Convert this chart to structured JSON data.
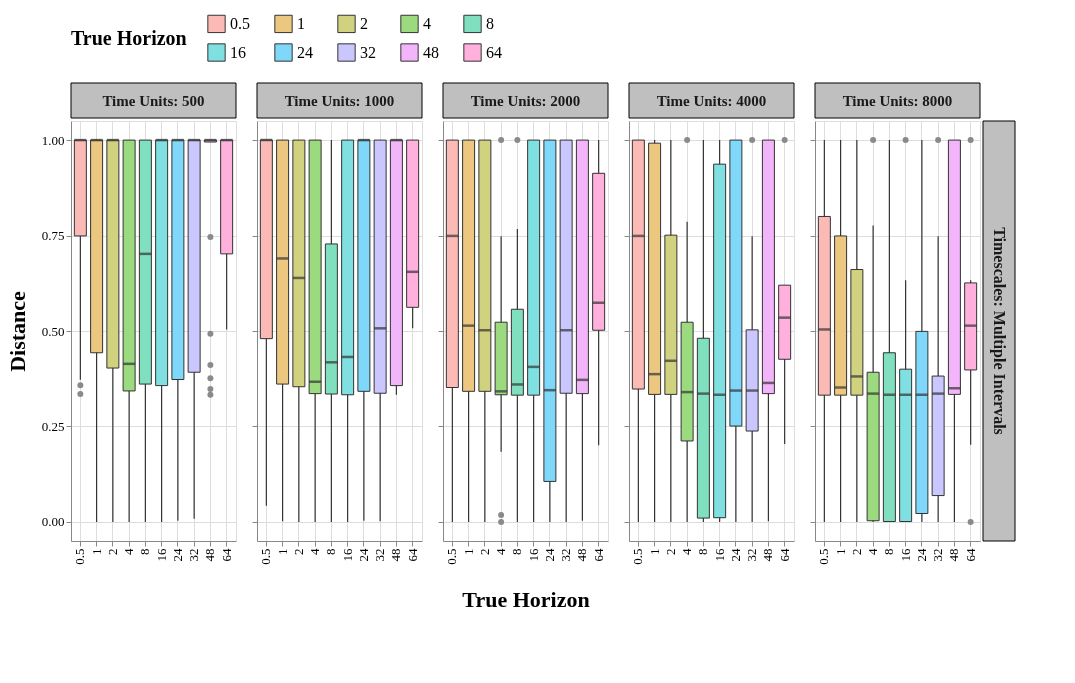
{
  "chart_data": [
    {
      "type": "box",
      "title": "Time Units: 500",
      "ylabel": "Distance",
      "legend_title": "True Horizon",
      "legend": "top",
      "grid": true,
      "ylim": [
        -0.05,
        1.05
      ],
      "yticks": [
        {
          "value": 0,
          "label": "0.00"
        },
        {
          "value": 0.25,
          "label": "0.25"
        },
        {
          "value": 0.5,
          "label": "0.50"
        },
        {
          "value": 0.75,
          "label": "0.75"
        },
        {
          "value": 1,
          "label": "1.00"
        }
      ],
      "categories": [
        "0.5",
        "1",
        "2",
        "4",
        "8",
        "16",
        "24",
        "32",
        "48",
        "64"
      ],
      "series": [
        {
          "name": "0.5",
          "color": "#fbbab6",
          "boxes": [
            {
              "low": 0.372,
              "q1": 0.749,
              "median": 1,
              "q3": 1,
              "high": 1,
              "outliers": [
                0.358,
                0.335
              ]
            },
            null,
            null,
            null,
            null,
            null,
            null,
            null,
            null,
            null
          ]
        },
        {
          "name": "1",
          "color": "#ebc77f",
          "boxes": [
            null,
            {
              "low": 0,
              "q1": 0.443,
              "median": 1,
              "q3": 1,
              "high": 1
            },
            null,
            null,
            null,
            null,
            null,
            null,
            null,
            null
          ]
        },
        {
          "name": "2",
          "color": "#d1d27f",
          "boxes": [
            null,
            null,
            {
              "low": 0,
              "q1": 0.403,
              "median": 1,
              "q3": 1,
              "high": 1
            },
            null,
            null,
            null,
            null,
            null,
            null,
            null
          ]
        },
        {
          "name": "4",
          "color": "#9cda7f",
          "boxes": [
            null,
            null,
            null,
            {
              "low": 0,
              "q1": 0.343,
              "median": 0.414,
              "q3": 1,
              "high": 1
            },
            null,
            null,
            null,
            null,
            null,
            null
          ]
        },
        {
          "name": "8",
          "color": "#7fdfbe",
          "boxes": [
            null,
            null,
            null,
            null,
            {
              "low": 0,
              "q1": 0.361,
              "median": 0.702,
              "q3": 1,
              "high": 1
            },
            null,
            null,
            null,
            null,
            null
          ]
        },
        {
          "name": "16",
          "color": "#7fdfe1",
          "boxes": [
            null,
            null,
            null,
            null,
            null,
            {
              "low": 0,
              "q1": 0.357,
              "median": 1,
              "q3": 1,
              "high": 1
            },
            null,
            null,
            null,
            null
          ]
        },
        {
          "name": "24",
          "color": "#7fd7fa",
          "boxes": [
            null,
            null,
            null,
            null,
            null,
            null,
            {
              "low": 0.003,
              "q1": 0.373,
              "median": 1,
              "q3": 1,
              "high": 1
            },
            null,
            null,
            null
          ]
        },
        {
          "name": "32",
          "color": "#cac7ff",
          "boxes": [
            null,
            null,
            null,
            null,
            null,
            null,
            null,
            {
              "low": 0.008,
              "q1": 0.392,
              "median": 1,
              "q3": 1,
              "high": 1
            },
            null,
            null
          ]
        },
        {
          "name": "48",
          "color": "#f3b5f9",
          "boxes": [
            null,
            null,
            null,
            null,
            null,
            null,
            null,
            null,
            {
              "low": 0.995,
              "q1": 0.995,
              "median": 1,
              "q3": 1,
              "high": 1,
              "outliers": [
                0.746,
                0.493,
                0.411,
                0.376,
                0.348,
                0.333
              ]
            },
            null
          ]
        },
        {
          "name": "64",
          "color": "#ffb0dd",
          "boxes": [
            null,
            null,
            null,
            null,
            null,
            null,
            null,
            null,
            null,
            {
              "low": 0.504,
              "q1": 0.702,
              "median": 1,
              "q3": 1,
              "high": 1
            }
          ]
        }
      ]
    },
    {
      "type": "box",
      "title": "Time Units: 1000",
      "grid": true,
      "tick_labels": "x",
      "ylim": [
        -0.05,
        1.05
      ],
      "yticks": [
        {
          "value": 0,
          "label": null
        },
        {
          "value": 0.25,
          "label": null
        },
        {
          "value": 0.5,
          "label": null
        },
        {
          "value": 0.75,
          "label": null
        },
        {
          "value": 1,
          "label": null
        }
      ],
      "categories": [
        "0.5",
        "1",
        "2",
        "4",
        "8",
        "16",
        "24",
        "32",
        "48",
        "64"
      ],
      "colors": [
        "#fbbab6",
        "#ebc77f",
        "#d1d27f",
        "#9cda7f",
        "#7fdfbe",
        "#7fdfe1",
        "#7fd7fa",
        "#cac7ff",
        "#f3b5f9",
        "#ffb0dd"
      ],
      "boxes": [
        {
          "low": 0.042,
          "q1": 0.48,
          "median": 1,
          "q3": 1,
          "high": 1
        },
        {
          "low": 0.002,
          "q1": 0.361,
          "median": 0.69,
          "q3": 1,
          "high": 1
        },
        {
          "low": 0,
          "q1": 0.354,
          "median": 0.639,
          "q3": 1,
          "high": 1
        },
        {
          "low": 0,
          "q1": 0.336,
          "median": 0.367,
          "q3": 1,
          "high": 1
        },
        {
          "low": 0,
          "q1": 0.335,
          "median": 0.418,
          "q3": 0.728,
          "high": 1
        },
        {
          "low": 0,
          "q1": 0.333,
          "median": 0.432,
          "q3": 1,
          "high": 1
        },
        {
          "low": 0.003,
          "q1": 0.342,
          "median": 1,
          "q3": 1,
          "high": 1
        },
        {
          "low": 0.002,
          "q1": 0.337,
          "median": 0.507,
          "q3": 1,
          "high": 1
        },
        {
          "low": 0.333,
          "q1": 0.357,
          "median": 1,
          "q3": 1,
          "high": 1
        },
        {
          "low": 0.507,
          "q1": 0.562,
          "median": 0.655,
          "q3": 1,
          "high": 1
        }
      ]
    },
    {
      "type": "box",
      "title": "Time Units: 2000",
      "xlabel": "True Horizon",
      "grid": true,
      "tick_labels": "x",
      "ylim": [
        -0.05,
        1.05
      ],
      "yticks": [
        {
          "value": 0,
          "label": null
        },
        {
          "value": 0.25,
          "label": null
        },
        {
          "value": 0.5,
          "label": null
        },
        {
          "value": 0.75,
          "label": null
        },
        {
          "value": 1,
          "label": null
        }
      ],
      "categories": [
        "0.5",
        "1",
        "2",
        "4",
        "8",
        "16",
        "24",
        "32",
        "48",
        "64"
      ],
      "colors": [
        "#fbbab6",
        "#ebc77f",
        "#d1d27f",
        "#9cda7f",
        "#7fdfbe",
        "#7fdfe1",
        "#7fd7fa",
        "#cac7ff",
        "#f3b5f9",
        "#ffb0dd"
      ],
      "boxes": [
        {
          "low": 0,
          "q1": 0.352,
          "median": 0.749,
          "q3": 1,
          "high": 1
        },
        {
          "low": 0,
          "q1": 0.342,
          "median": 0.514,
          "q3": 1,
          "high": 1
        },
        {
          "low": 0,
          "q1": 0.342,
          "median": 0.502,
          "q3": 1,
          "high": 1
        },
        {
          "low": 0.184,
          "q1": 0.333,
          "median": 0.342,
          "q3": 0.523,
          "high": 0.748,
          "outliers": [
            1,
            0.018,
            0
          ]
        },
        {
          "low": 0,
          "q1": 0.332,
          "median": 0.36,
          "q3": 0.557,
          "high": 0.767,
          "outliers": [
            1
          ]
        },
        {
          "low": 0,
          "q1": 0.332,
          "median": 0.406,
          "q3": 1,
          "high": 1
        },
        {
          "low": 0,
          "q1": 0.106,
          "median": 0.345,
          "q3": 1,
          "high": 1
        },
        {
          "low": 0,
          "q1": 0.337,
          "median": 0.502,
          "q3": 1,
          "high": 1
        },
        {
          "low": 0.003,
          "q1": 0.336,
          "median": 0.372,
          "q3": 1,
          "high": 1
        },
        {
          "low": 0.201,
          "q1": 0.502,
          "median": 0.574,
          "q3": 0.913,
          "high": 1
        }
      ]
    },
    {
      "type": "box",
      "title": "Time Units: 4000",
      "grid": true,
      "tick_labels": "x",
      "ylim": [
        -0.05,
        1.05
      ],
      "yticks": [
        {
          "value": 0,
          "label": null
        },
        {
          "value": 0.25,
          "label": null
        },
        {
          "value": 0.5,
          "label": null
        },
        {
          "value": 0.75,
          "label": null
        },
        {
          "value": 1,
          "label": null
        }
      ],
      "categories": [
        "0.5",
        "1",
        "2",
        "4",
        "8",
        "16",
        "24",
        "32",
        "48",
        "64"
      ],
      "colors": [
        "#fbbab6",
        "#ebc77f",
        "#d1d27f",
        "#9cda7f",
        "#7fdfbe",
        "#7fdfe1",
        "#7fd7fa",
        "#cac7ff",
        "#f3b5f9",
        "#ffb0dd"
      ],
      "boxes": [
        {
          "low": 0,
          "q1": 0.348,
          "median": 0.749,
          "q3": 1,
          "high": 1
        },
        {
          "low": 0,
          "q1": 0.334,
          "median": 0.387,
          "q3": 0.992,
          "high": 1
        },
        {
          "low": 0,
          "q1": 0.334,
          "median": 0.422,
          "q3": 0.751,
          "high": 1
        },
        {
          "low": 0,
          "q1": 0.212,
          "median": 0.34,
          "q3": 0.523,
          "high": 0.786,
          "outliers": [
            1
          ]
        },
        {
          "low": 0,
          "q1": 0.01,
          "median": 0.336,
          "q3": 0.481,
          "high": 1
        },
        {
          "low": 0,
          "q1": 0.011,
          "median": 0.333,
          "q3": 0.937,
          "high": 1
        },
        {
          "low": 0,
          "q1": 0.251,
          "median": 0.344,
          "q3": 1,
          "high": 1
        },
        {
          "low": 0,
          "q1": 0.238,
          "median": 0.344,
          "q3": 0.503,
          "high": 0.748,
          "outliers": [
            1
          ]
        },
        {
          "low": 0.002,
          "q1": 0.336,
          "median": 0.364,
          "q3": 1,
          "high": 1
        },
        {
          "low": 0.204,
          "q1": 0.426,
          "median": 0.535,
          "q3": 0.62,
          "high": 0.62,
          "outliers": [
            1
          ]
        }
      ]
    },
    {
      "type": "box",
      "title": "Time Units: 8000",
      "grid": true,
      "tick_labels": "x",
      "ylim": [
        -0.05,
        1.05
      ],
      "yticks": [
        {
          "value": 0,
          "label": null
        },
        {
          "value": 0.25,
          "label": null
        },
        {
          "value": 0.5,
          "label": null
        },
        {
          "value": 0.75,
          "label": null
        },
        {
          "value": 1,
          "label": null
        }
      ],
      "annotations": [
        "Timescales: Multiple Intervals"
      ],
      "categories": [
        "0.5",
        "1",
        "2",
        "4",
        "8",
        "16",
        "24",
        "32",
        "48",
        "64"
      ],
      "colors": [
        "#fbbab6",
        "#ebc77f",
        "#d1d27f",
        "#9cda7f",
        "#7fdfbe",
        "#7fdfe1",
        "#7fd7fa",
        "#cac7ff",
        "#f3b5f9",
        "#ffb0dd"
      ],
      "boxes": [
        {
          "low": 0,
          "q1": 0.332,
          "median": 0.504,
          "q3": 0.8,
          "high": 1
        },
        {
          "low": 0,
          "q1": 0.332,
          "median": 0.352,
          "q3": 0.749,
          "high": 1
        },
        {
          "low": 0,
          "q1": 0.332,
          "median": 0.381,
          "q3": 0.661,
          "high": 1
        },
        {
          "low": 0,
          "q1": 0.003,
          "median": 0.336,
          "q3": 0.392,
          "high": 0.776,
          "outliers": [
            1
          ]
        },
        {
          "low": 0,
          "q1": 0.001,
          "median": 0.333,
          "q3": 0.443,
          "high": 1
        },
        {
          "low": 0,
          "q1": 0.001,
          "median": 0.333,
          "q3": 0.4,
          "high": 0.633,
          "outliers": [
            1
          ]
        },
        {
          "low": 0,
          "q1": 0.022,
          "median": 0.333,
          "q3": 0.499,
          "high": 1
        },
        {
          "low": 0,
          "q1": 0.069,
          "median": 0.336,
          "q3": 0.382,
          "high": 0.748,
          "outliers": [
            1
          ]
        },
        {
          "low": 0,
          "q1": 0.334,
          "median": 0.35,
          "q3": 1,
          "high": 1
        },
        {
          "low": 0.202,
          "q1": 0.398,
          "median": 0.514,
          "q3": 0.626,
          "high": 0.633,
          "outliers": [
            1,
            0
          ]
        }
      ]
    }
  ]
}
